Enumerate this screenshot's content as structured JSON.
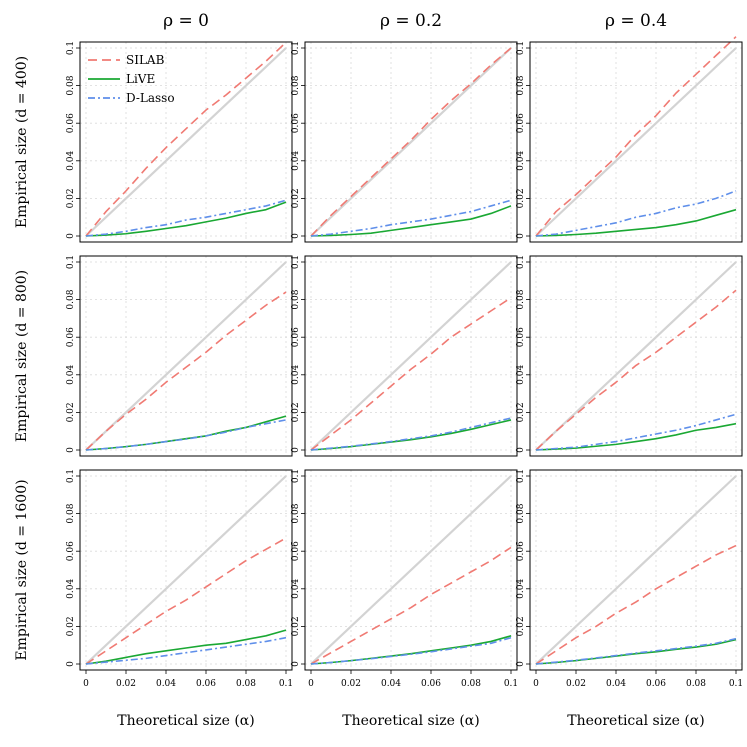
{
  "figure": {
    "column_titles": [
      "ρ = 0",
      "ρ = 0.2",
      "ρ = 0.4"
    ],
    "row_labels": [
      "Empirical size (d = 400)",
      "Empirical size (d = 800)",
      "Empirical size (d = 1600)"
    ],
    "x_label": "Theoretical size (α)",
    "legend": [
      "SILAB",
      "LiVE",
      "D-Lasso"
    ]
  },
  "chart_data": {
    "type": "line",
    "layout": "3x3 grid",
    "xlim": [
      0,
      0.1
    ],
    "ylim": [
      0,
      0.1
    ],
    "x_ticks": [
      "0",
      "0.02",
      "0.04",
      "0.06",
      "0.08",
      "0.1"
    ],
    "y_ticks": [
      "0",
      "0.02",
      "0.04",
      "0.06",
      "0.08",
      "0.1"
    ],
    "grid": true,
    "legend_position": "top-left of first panel",
    "x": [
      0,
      0.01,
      0.02,
      0.03,
      0.04,
      0.05,
      0.06,
      0.07,
      0.08,
      0.09,
      0.1
    ],
    "reference_line": {
      "from": [
        0,
        0
      ],
      "to": [
        0.1,
        0.1
      ],
      "color": "#d3d3d3"
    },
    "series_styles": [
      {
        "name": "SILAB",
        "color": "#f07a73",
        "dash": "9 5"
      },
      {
        "name": "LiVE",
        "color": "#1aa833",
        "dash": ""
      },
      {
        "name": "D-Lasso",
        "color": "#5f8fea",
        "dash": "7 3 2 3"
      }
    ],
    "panels": [
      {
        "row": 0,
        "col": 0,
        "series": [
          {
            "name": "SILAB",
            "values": [
              0,
              0.013,
              0.024,
              0.036,
              0.047,
              0.057,
              0.067,
              0.075,
              0.084,
              0.093,
              0.103
            ]
          },
          {
            "name": "LiVE",
            "values": [
              0,
              0.0005,
              0.0012,
              0.0025,
              0.004,
              0.0055,
              0.0075,
              0.0095,
              0.012,
              0.014,
              0.018
            ]
          },
          {
            "name": "D-Lasso",
            "values": [
              0,
              0.001,
              0.0025,
              0.0045,
              0.006,
              0.0085,
              0.01,
              0.012,
              0.014,
              0.016,
              0.019
            ]
          }
        ]
      },
      {
        "row": 0,
        "col": 1,
        "series": [
          {
            "name": "SILAB",
            "values": [
              0,
              0.011,
              0.021,
              0.031,
              0.041,
              0.051,
              0.062,
              0.072,
              0.081,
              0.091,
              0.1
            ]
          },
          {
            "name": "LiVE",
            "values": [
              0,
              0.0003,
              0.0008,
              0.0015,
              0.003,
              0.0045,
              0.006,
              0.0075,
              0.009,
              0.012,
              0.016
            ]
          },
          {
            "name": "D-Lasso",
            "values": [
              0,
              0.001,
              0.0025,
              0.004,
              0.006,
              0.0075,
              0.009,
              0.011,
              0.013,
              0.016,
              0.019
            ]
          }
        ]
      },
      {
        "row": 0,
        "col": 2,
        "series": [
          {
            "name": "SILAB",
            "values": [
              0,
              0.013,
              0.022,
              0.032,
              0.042,
              0.054,
              0.064,
              0.076,
              0.086,
              0.096,
              0.106
            ]
          },
          {
            "name": "LiVE",
            "values": [
              0,
              0.0003,
              0.0008,
              0.0015,
              0.0025,
              0.0035,
              0.0045,
              0.006,
              0.008,
              0.011,
              0.014
            ]
          },
          {
            "name": "D-Lasso",
            "values": [
              0,
              0.001,
              0.003,
              0.005,
              0.007,
              0.01,
              0.012,
              0.015,
              0.017,
              0.02,
              0.024
            ]
          }
        ]
      },
      {
        "row": 1,
        "col": 0,
        "series": [
          {
            "name": "SILAB",
            "values": [
              0,
              0.01,
              0.019,
              0.027,
              0.036,
              0.044,
              0.052,
              0.061,
              0.069,
              0.077,
              0.084
            ]
          },
          {
            "name": "LiVE",
            "values": [
              0,
              0.0008,
              0.0018,
              0.003,
              0.0045,
              0.006,
              0.0075,
              0.01,
              0.012,
              0.015,
              0.018
            ]
          },
          {
            "name": "D-Lasso",
            "values": [
              0,
              0.0008,
              0.0018,
              0.003,
              0.0045,
              0.0058,
              0.0075,
              0.0095,
              0.012,
              0.014,
              0.016
            ]
          }
        ]
      },
      {
        "row": 1,
        "col": 1,
        "series": [
          {
            "name": "SILAB",
            "values": [
              0,
              0.008,
              0.016,
              0.025,
              0.034,
              0.043,
              0.051,
              0.06,
              0.067,
              0.074,
              0.081
            ]
          },
          {
            "name": "LiVE",
            "values": [
              0,
              0.0008,
              0.0018,
              0.003,
              0.0042,
              0.0055,
              0.007,
              0.0088,
              0.011,
              0.0135,
              0.016
            ]
          },
          {
            "name": "D-Lasso",
            "values": [
              0,
              0.001,
              0.002,
              0.0032,
              0.0045,
              0.006,
              0.0075,
              0.0095,
              0.012,
              0.0145,
              0.017
            ]
          }
        ]
      },
      {
        "row": 1,
        "col": 2,
        "series": [
          {
            "name": "SILAB",
            "values": [
              0,
              0.01,
              0.019,
              0.028,
              0.036,
              0.045,
              0.052,
              0.06,
              0.068,
              0.076,
              0.085
            ]
          },
          {
            "name": "LiVE",
            "values": [
              0,
              0.0005,
              0.001,
              0.002,
              0.003,
              0.0045,
              0.006,
              0.008,
              0.0105,
              0.012,
              0.014
            ]
          },
          {
            "name": "D-Lasso",
            "values": [
              0,
              0.0008,
              0.0015,
              0.003,
              0.0045,
              0.0065,
              0.0085,
              0.0105,
              0.013,
              0.016,
              0.019
            ]
          }
        ]
      },
      {
        "row": 2,
        "col": 0,
        "series": [
          {
            "name": "SILAB",
            "values": [
              0,
              0.007,
              0.014,
              0.021,
              0.028,
              0.034,
              0.041,
              0.048,
              0.055,
              0.061,
              0.067
            ]
          },
          {
            "name": "LiVE",
            "values": [
              0,
              0.0015,
              0.0035,
              0.0055,
              0.007,
              0.0085,
              0.01,
              0.011,
              0.013,
              0.015,
              0.018
            ]
          },
          {
            "name": "D-Lasso",
            "values": [
              0,
              0.001,
              0.002,
              0.003,
              0.0045,
              0.006,
              0.0075,
              0.009,
              0.0105,
              0.012,
              0.014
            ]
          }
        ]
      },
      {
        "row": 2,
        "col": 1,
        "series": [
          {
            "name": "SILAB",
            "values": [
              0,
              0.006,
              0.012,
              0.018,
              0.024,
              0.03,
              0.037,
              0.043,
              0.049,
              0.055,
              0.062
            ]
          },
          {
            "name": "LiVE",
            "values": [
              0,
              0.0008,
              0.0018,
              0.003,
              0.0042,
              0.0055,
              0.007,
              0.0085,
              0.01,
              0.012,
              0.015
            ]
          },
          {
            "name": "D-Lasso",
            "values": [
              0,
              0.0008,
              0.0018,
              0.0028,
              0.004,
              0.0052,
              0.0065,
              0.008,
              0.0095,
              0.011,
              0.014
            ]
          }
        ]
      },
      {
        "row": 2,
        "col": 2,
        "series": [
          {
            "name": "SILAB",
            "values": [
              0,
              0.007,
              0.014,
              0.02,
              0.027,
              0.033,
              0.04,
              0.046,
              0.052,
              0.058,
              0.063
            ]
          },
          {
            "name": "LiVE",
            "values": [
              0,
              0.0008,
              0.0018,
              0.003,
              0.0042,
              0.0055,
              0.0065,
              0.0078,
              0.009,
              0.0105,
              0.013
            ]
          },
          {
            "name": "D-Lasso",
            "values": [
              0,
              0.001,
              0.002,
              0.0032,
              0.0045,
              0.0058,
              0.007,
              0.0082,
              0.0095,
              0.011,
              0.0135
            ]
          }
        ]
      }
    ]
  }
}
